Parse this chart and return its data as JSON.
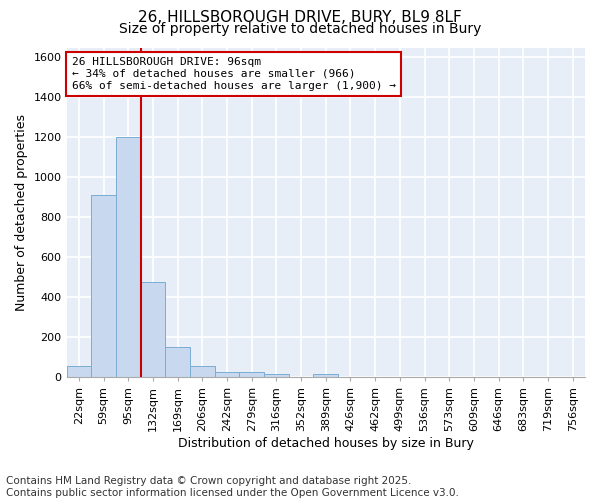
{
  "title1": "26, HILLSBOROUGH DRIVE, BURY, BL9 8LF",
  "title2": "Size of property relative to detached houses in Bury",
  "xlabel": "Distribution of detached houses by size in Bury",
  "ylabel": "Number of detached properties",
  "bar_labels": [
    "22sqm",
    "59sqm",
    "95sqm",
    "132sqm",
    "169sqm",
    "206sqm",
    "242sqm",
    "279sqm",
    "316sqm",
    "352sqm",
    "389sqm",
    "426sqm",
    "462sqm",
    "499sqm",
    "536sqm",
    "573sqm",
    "609sqm",
    "646sqm",
    "683sqm",
    "719sqm",
    "756sqm"
  ],
  "bar_values": [
    55,
    910,
    1200,
    475,
    150,
    58,
    28,
    28,
    18,
    0,
    18,
    0,
    0,
    0,
    0,
    0,
    0,
    0,
    0,
    0,
    0
  ],
  "bar_color": "#c8d8ee",
  "bar_edge_color": "#7aadd4",
  "red_line_x": 2.5,
  "ylim": [
    0,
    1650
  ],
  "yticks": [
    0,
    200,
    400,
    600,
    800,
    1000,
    1200,
    1400,
    1600
  ],
  "annotation_line1": "26 HILLSBOROUGH DRIVE: 96sqm",
  "annotation_line2": "← 34% of detached houses are smaller (966)",
  "annotation_line3": "66% of semi-detached houses are larger (1,900) →",
  "annotation_box_color": "#ffffff",
  "annotation_border_color": "#cc0000",
  "red_line_color": "#cc0000",
  "footer_line1": "Contains HM Land Registry data © Crown copyright and database right 2025.",
  "footer_line2": "Contains public sector information licensed under the Open Government Licence v3.0.",
  "plot_bg_color": "#e8eef8",
  "fig_bg_color": "#ffffff",
  "grid_color": "#ffffff",
  "title_fontsize": 11,
  "subtitle_fontsize": 10,
  "tick_fontsize": 8,
  "ylabel_fontsize": 9,
  "xlabel_fontsize": 9,
  "annotation_fontsize": 8,
  "footer_fontsize": 7.5
}
